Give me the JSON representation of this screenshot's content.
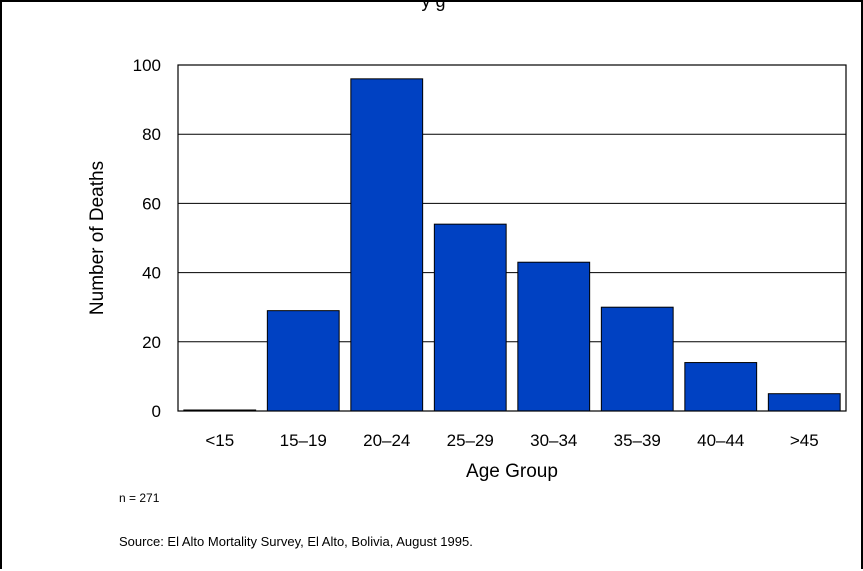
{
  "chart_data": {
    "type": "bar",
    "title_fragment": "y         g",
    "categories": [
      "<15",
      "15–19",
      "20–24",
      "25–29",
      "30–34",
      "35–39",
      "40–44",
      ">45"
    ],
    "values": [
      0,
      29,
      96,
      54,
      43,
      30,
      14,
      5
    ],
    "ylim": [
      0,
      100
    ],
    "yticks": [
      0,
      20,
      40,
      60,
      80,
      100
    ],
    "xlabel": "Age Group",
    "ylabel": "Number of Deaths",
    "grid": "horizontal",
    "legend": "none",
    "bar_color": "#0041c2"
  },
  "notes": {
    "n": "n = 271",
    "source": "Source: El Alto Mortality Survey,  El Alto, Bolivia,  August 1995."
  }
}
